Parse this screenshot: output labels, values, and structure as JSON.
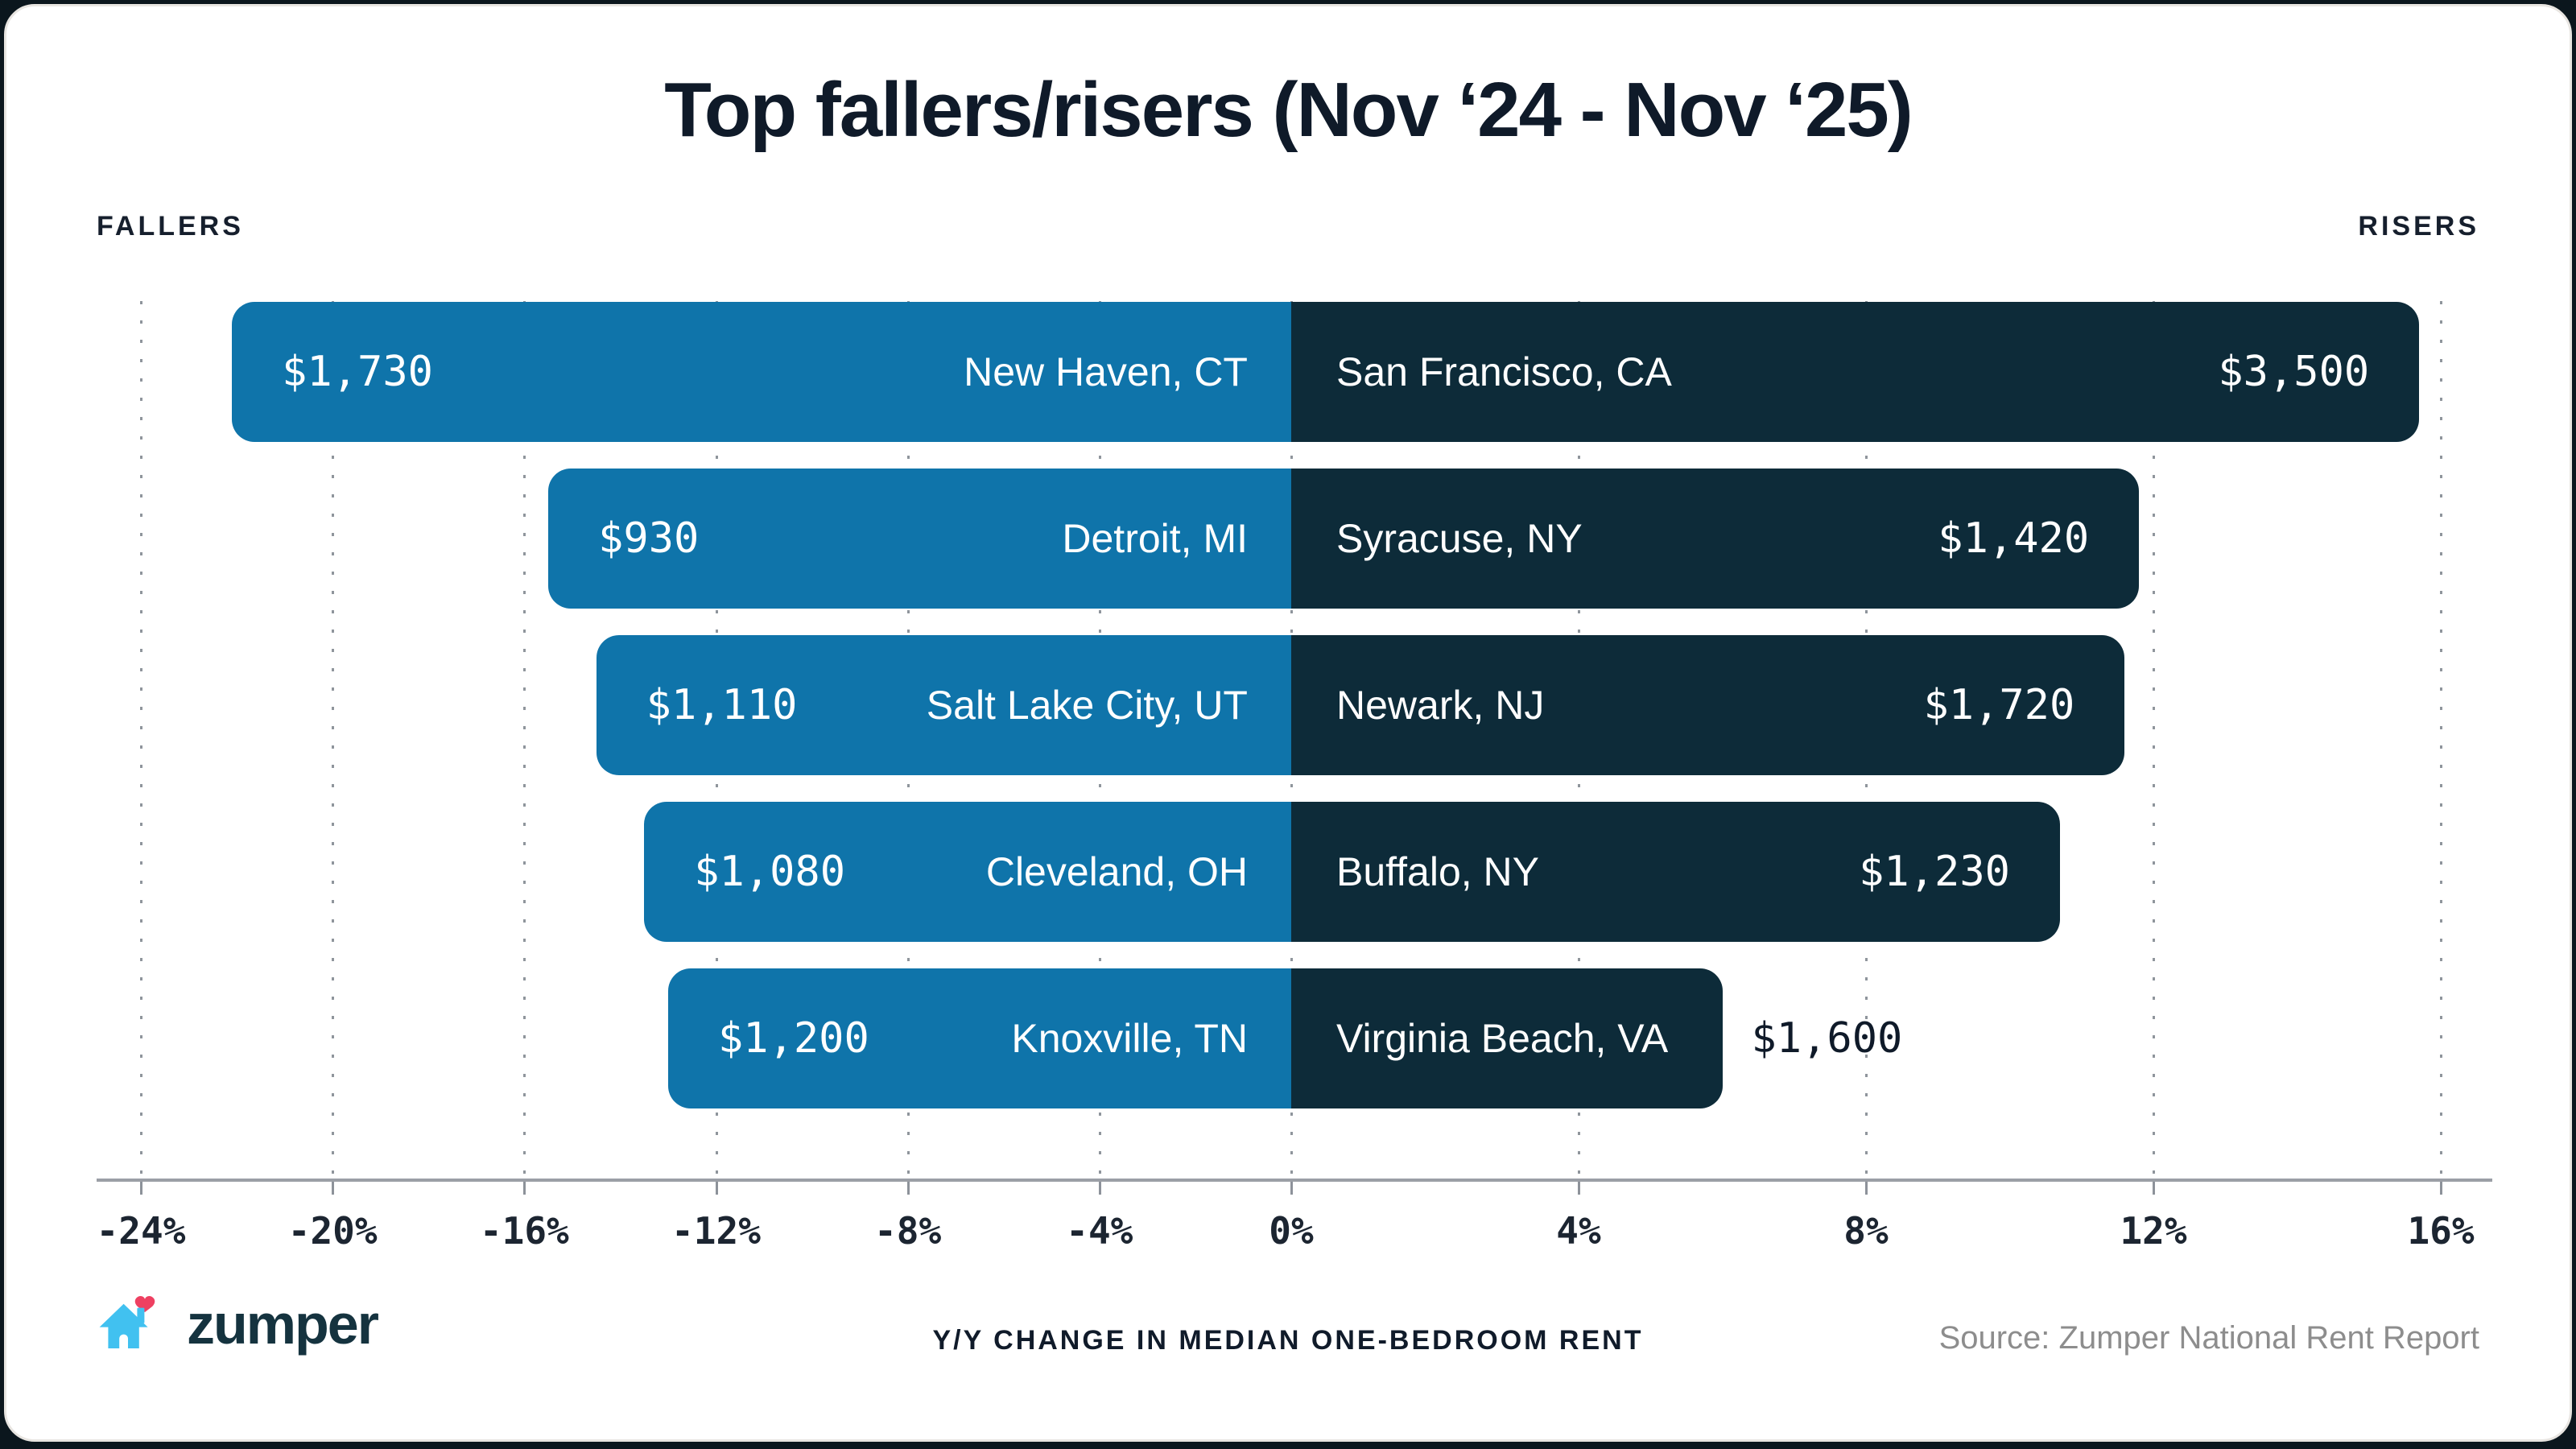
{
  "labels": {
    "fallers": "FALLERS",
    "risers": "RISERS"
  },
  "footer": {
    "brand": "zumper",
    "axis_caption": "Y/Y CHANGE IN MEDIAN ONE-BEDROOM RENT",
    "source": "Source: Zumper National Rent Report"
  },
  "icons": {
    "logo_house": "house-with-heart-icon"
  },
  "colors": {
    "faller_bar_blue": "#0f74aa",
    "riser_bar_navy": "#0d2b39",
    "title_text": "#0f1a29",
    "tick_text": "#1c2531",
    "source_text": "#8d8d8d",
    "grid_dot": "#8f959c",
    "axis_line": "#9b9fa6",
    "logo_house_blue": "#41c1f0",
    "logo_heart_pink": "#ee4061",
    "logo_wordmark": "#15333f",
    "card_background": "#ffffff",
    "card_border": "#e8e5e1"
  },
  "chart_data": {
    "type": "bar",
    "subtype": "diverging-horizontal",
    "title": "Top fallers/risers (Nov ‘24 - Nov ‘25)",
    "xlabel": "Y/Y CHANGE IN MEDIAN ONE-BEDROOM RENT",
    "left_header": "FALLERS",
    "right_header": "RISERS",
    "x_ticks": [
      -24,
      -20,
      -16,
      -12,
      -8,
      -4,
      0,
      4,
      8,
      12,
      16
    ],
    "x_tick_labels": [
      "-24%",
      "-20%",
      "-16%",
      "-12%",
      "-8%",
      "-4%",
      "0%",
      "4%",
      "8%",
      "12%",
      "16%"
    ],
    "xlim_left_half": [
      -24,
      0
    ],
    "xlim_right_half": [
      0,
      16
    ],
    "layout_note": "left (fallers) half and right (risers) half of the axis use different pixel-per-percent scales; dotted vertical gridlines at every tick; grid on",
    "value_note": "pct_change_est values are estimated from bar lengths against the gridlines; dollar rents are printed on the bars",
    "rows": [
      {
        "faller": {
          "city": "New Haven, CT",
          "rent": "$1,730",
          "pct_change_est": -22.1
        },
        "riser": {
          "city": "San Francisco, CA",
          "rent": "$3,500",
          "pct_change_est": 15.7
        }
      },
      {
        "faller": {
          "city": "Detroit, MI",
          "rent": "$930",
          "pct_change_est": -15.5
        },
        "riser": {
          "city": "Syracuse, NY",
          "rent": "$1,420",
          "pct_change_est": 11.8
        }
      },
      {
        "faller": {
          "city": "Salt Lake City, UT",
          "rent": "$1,110",
          "pct_change_est": -14.5
        },
        "riser": {
          "city": "Newark, NJ",
          "rent": "$1,720",
          "pct_change_est": 11.6
        }
      },
      {
        "faller": {
          "city": "Cleveland, OH",
          "rent": "$1,080",
          "pct_change_est": -13.5
        },
        "riser": {
          "city": "Buffalo, NY",
          "rent": "$1,230",
          "pct_change_est": 10.7
        }
      },
      {
        "faller": {
          "city": "Knoxville, TN",
          "rent": "$1,200",
          "pct_change_est": -13.0
        },
        "riser": {
          "city": "Virginia Beach, VA",
          "rent": "$1,600",
          "pct_change_est": 6.0,
          "value_outside": true
        }
      }
    ]
  }
}
